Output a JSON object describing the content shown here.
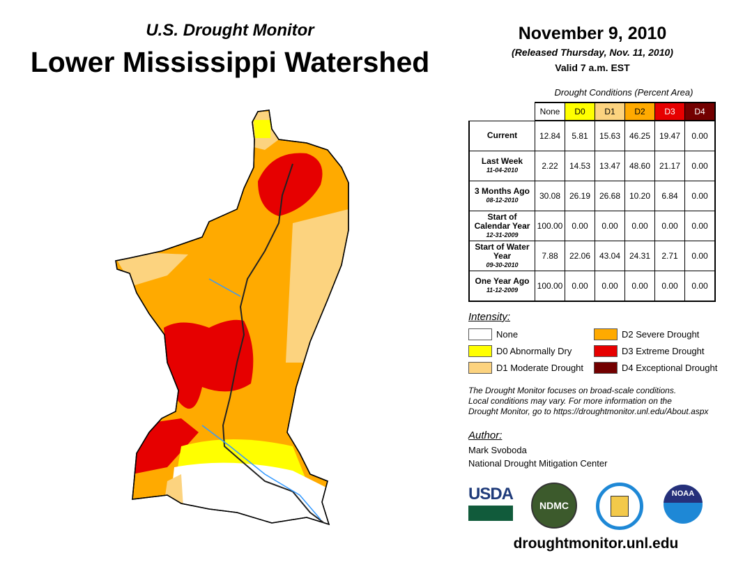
{
  "header": {
    "subtitle": "U.S. Drought Monitor",
    "title": "Lower Mississippi Watershed",
    "date": "November 9, 2010",
    "released": "(Released Thursday, Nov. 11, 2010)",
    "valid": "Valid 7 a.m. EST"
  },
  "table": {
    "caption": "Drought Conditions (Percent Area)",
    "columns": [
      "None",
      "D0",
      "D1",
      "D2",
      "D3",
      "D4"
    ],
    "column_colors": [
      "#ffffff",
      "#ffff00",
      "#fcd37f",
      "#ffaa00",
      "#e60000",
      "#730000"
    ],
    "rows": [
      {
        "label": "Current",
        "date": "",
        "values": [
          "12.84",
          "5.81",
          "15.63",
          "46.25",
          "19.47",
          "0.00"
        ]
      },
      {
        "label": "Last Week",
        "date": "11-04-2010",
        "values": [
          "2.22",
          "14.53",
          "13.47",
          "48.60",
          "21.17",
          "0.00"
        ]
      },
      {
        "label": "3 Months Ago",
        "date": "08-12-2010",
        "values": [
          "30.08",
          "26.19",
          "26.68",
          "10.20",
          "6.84",
          "0.00"
        ]
      },
      {
        "label": "Start of Calendar Year",
        "date": "12-31-2009",
        "values": [
          "100.00",
          "0.00",
          "0.00",
          "0.00",
          "0.00",
          "0.00"
        ]
      },
      {
        "label": "Start of Water Year",
        "date": "09-30-2010",
        "values": [
          "7.88",
          "22.06",
          "43.04",
          "24.31",
          "2.71",
          "0.00"
        ]
      },
      {
        "label": "One Year Ago",
        "date": "11-12-2009",
        "values": [
          "100.00",
          "0.00",
          "0.00",
          "0.00",
          "0.00",
          "0.00"
        ]
      }
    ]
  },
  "legend": {
    "title": "Intensity:",
    "items": [
      {
        "label": "None",
        "color": "#ffffff"
      },
      {
        "label": "D0 Abnormally Dry",
        "color": "#ffff00"
      },
      {
        "label": "D1 Moderate Drought",
        "color": "#fcd37f"
      },
      {
        "label": "D2 Severe Drought",
        "color": "#ffaa00"
      },
      {
        "label": "D3 Extreme Drought",
        "color": "#e60000"
      },
      {
        "label": "D4 Exceptional Drought",
        "color": "#730000"
      }
    ]
  },
  "note": [
    "The Drought Monitor focuses on broad-scale conditions.",
    "Local conditions may vary. For more information on the",
    "Drought Monitor, go to https://droughtmonitor.unl.edu/About.aspx"
  ],
  "author": {
    "label": "Author:",
    "name": "Mark Svoboda",
    "org": "National Drought Mitigation Center"
  },
  "logos": {
    "usda": "USDA",
    "ndmc": "NDMC",
    "noaa": "NOAA"
  },
  "url": "droughtmonitor.unl.edu"
}
